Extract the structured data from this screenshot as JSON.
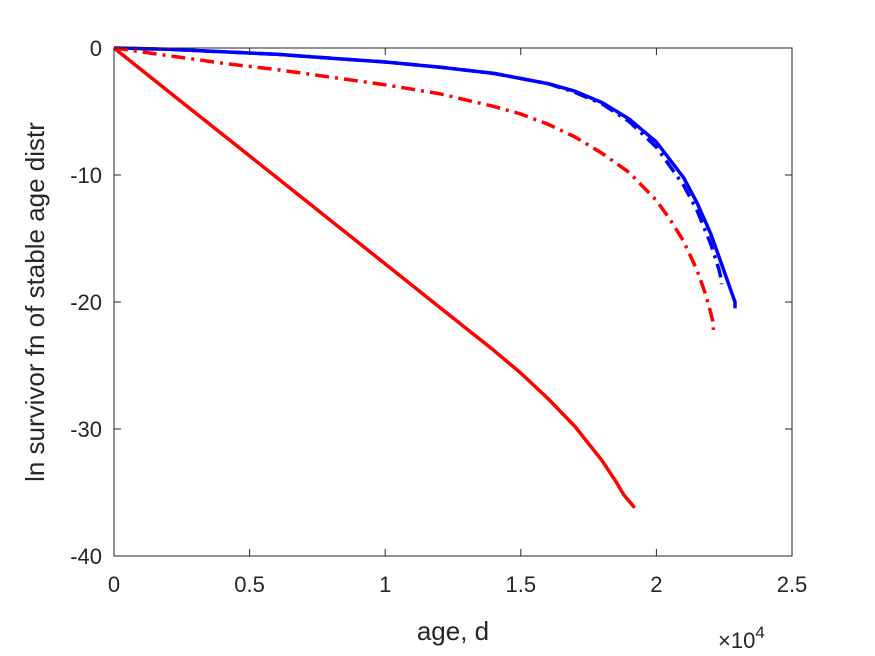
{
  "chart_data": {
    "type": "line",
    "xlabel": "age, d",
    "ylabel": "ln survivor fn of stable age distr",
    "x_multiplier_label": "×10",
    "x_multiplier_exponent": "4",
    "xlim": [
      0,
      25000
    ],
    "ylim": [
      -40,
      0
    ],
    "x_ticks": [
      0,
      5000,
      10000,
      15000,
      20000,
      25000
    ],
    "x_tick_labels": [
      "0",
      "0.5",
      "1",
      "1.5",
      "2",
      "2.5"
    ],
    "y_ticks": [
      0,
      -10,
      -20,
      -30,
      -40
    ],
    "y_tick_labels": [
      "0",
      "-10",
      "-20",
      "-30",
      "-40"
    ],
    "grid": false,
    "legend": "none",
    "series": [
      {
        "color": "#0000ff",
        "style": "solid",
        "x": [
          0,
          2000,
          4000,
          6000,
          8000,
          10000,
          12000,
          14000,
          15000,
          16000,
          17000,
          18000,
          19000,
          20000,
          21000,
          21500,
          22000,
          22400,
          22700,
          22900,
          22900
        ],
        "y": [
          0,
          -0.1,
          -0.3,
          -0.5,
          -0.8,
          -1.1,
          -1.5,
          -2.0,
          -2.4,
          -2.8,
          -3.4,
          -4.3,
          -5.6,
          -7.4,
          -10.2,
          -12.2,
          -14.6,
          -17.0,
          -18.8,
          -20.0,
          -20.5
        ]
      },
      {
        "color": "#0000ff",
        "style": "dashdot",
        "x": [
          0,
          2000,
          4000,
          6000,
          8000,
          10000,
          12000,
          14000,
          15000,
          16000,
          17000,
          18000,
          19000,
          20000,
          21000,
          21500,
          22000,
          22300,
          22400,
          22400
        ],
        "y": [
          0,
          -0.1,
          -0.3,
          -0.5,
          -0.8,
          -1.1,
          -1.5,
          -2.0,
          -2.4,
          -2.8,
          -3.5,
          -4.4,
          -5.8,
          -7.8,
          -10.8,
          -12.8,
          -15.4,
          -17.4,
          -18.3,
          -18.6
        ]
      },
      {
        "color": "#ff0000",
        "style": "dashdot",
        "x": [
          0,
          2000,
          4000,
          6000,
          8000,
          10000,
          12000,
          14000,
          15000,
          16000,
          17000,
          18000,
          19000,
          20000,
          20500,
          21000,
          21500,
          21800,
          22000,
          22100,
          22100
        ],
        "y": [
          0,
          -0.6,
          -1.2,
          -1.7,
          -2.3,
          -2.9,
          -3.6,
          -4.6,
          -5.2,
          -6.0,
          -7.0,
          -8.3,
          -9.8,
          -12.0,
          -13.5,
          -15.2,
          -17.5,
          -19.3,
          -20.8,
          -21.7,
          -22.2
        ]
      },
      {
        "color": "#ff0000",
        "style": "solid",
        "x": [
          0,
          2000,
          4000,
          6000,
          8000,
          10000,
          12000,
          14000,
          15000,
          16000,
          17000,
          18000,
          18500,
          18800,
          19000,
          19200
        ],
        "y": [
          0,
          -3.4,
          -6.8,
          -10.2,
          -13.6,
          -17.0,
          -20.4,
          -23.8,
          -25.6,
          -27.6,
          -29.8,
          -32.5,
          -34.1,
          -35.2,
          -35.7,
          -36.2
        ]
      }
    ]
  }
}
